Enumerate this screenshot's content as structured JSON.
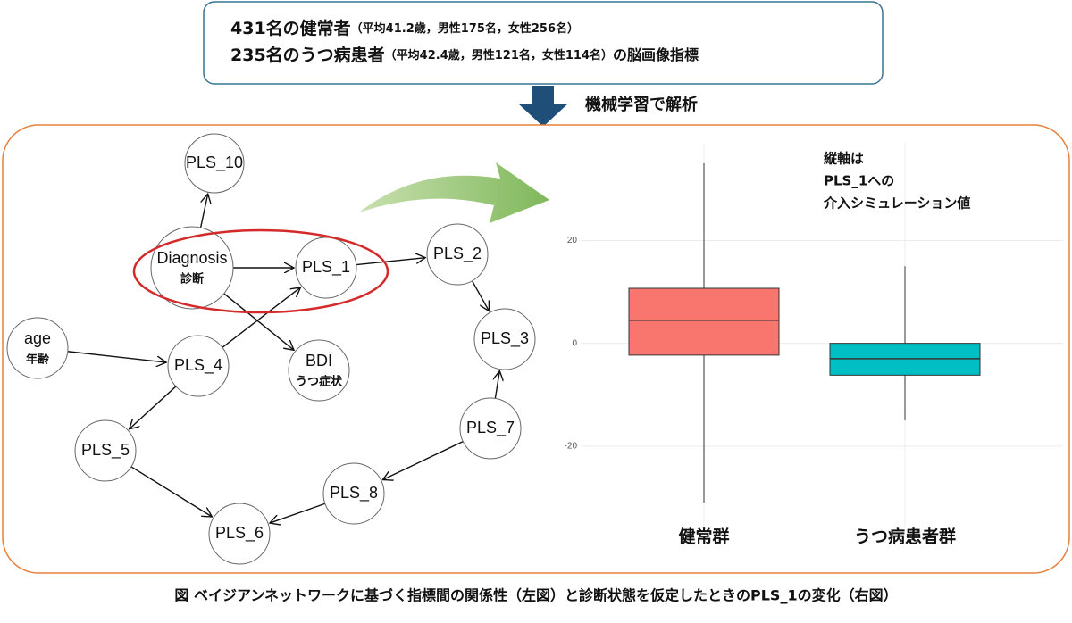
{
  "header": {
    "line1": {
      "main": "431名の健常者",
      "detail": "（平均41.2歳，男性175名，女性256名）"
    },
    "line2": {
      "main": "235名のうつ病患者",
      "detail": "（平均42.4歳，男性121名，女性114名）",
      "suffix": "の脳画像指標"
    }
  },
  "arrow_label": "機械学習で解析",
  "network": {
    "nodes": [
      {
        "label": "PLS_10"
      },
      {
        "label": "Diagnosis",
        "sublabel": "診断"
      },
      {
        "label": "PLS_1"
      },
      {
        "label": "PLS_2"
      },
      {
        "label": "PLS_3"
      },
      {
        "label": "age",
        "sublabel": "年齢"
      },
      {
        "label": "PLS_4"
      },
      {
        "label": "BDI",
        "sublabel": "うつ症状"
      },
      {
        "label": "PLS_7"
      },
      {
        "label": "PLS_5"
      },
      {
        "label": "PLS_8"
      },
      {
        "label": "PLS_6"
      }
    ]
  },
  "chart_data": {
    "type": "box",
    "annotation": [
      "縦軸は",
      "PLS_1への",
      "介入シミュレーション値"
    ],
    "categories": [
      "健常群",
      "うつ病患者群"
    ],
    "colors": [
      "#f8766d",
      "#00bfc4"
    ],
    "boxes": [
      {
        "low": -31,
        "q1": -2.3,
        "median": 4.5,
        "q3": 10.7,
        "high": 35
      },
      {
        "low": -15,
        "q1": -6.2,
        "median": -3,
        "q3": 0,
        "high": 15
      }
    ],
    "ylim": [
      -36,
      39
    ],
    "yticks": [
      -20,
      0,
      20
    ],
    "grid": true
  },
  "caption": "図 ベイジアンネットワークに基づく指標間の関係性（左図）と診断状態を仮定したときのPLS_1の変化（右図）"
}
